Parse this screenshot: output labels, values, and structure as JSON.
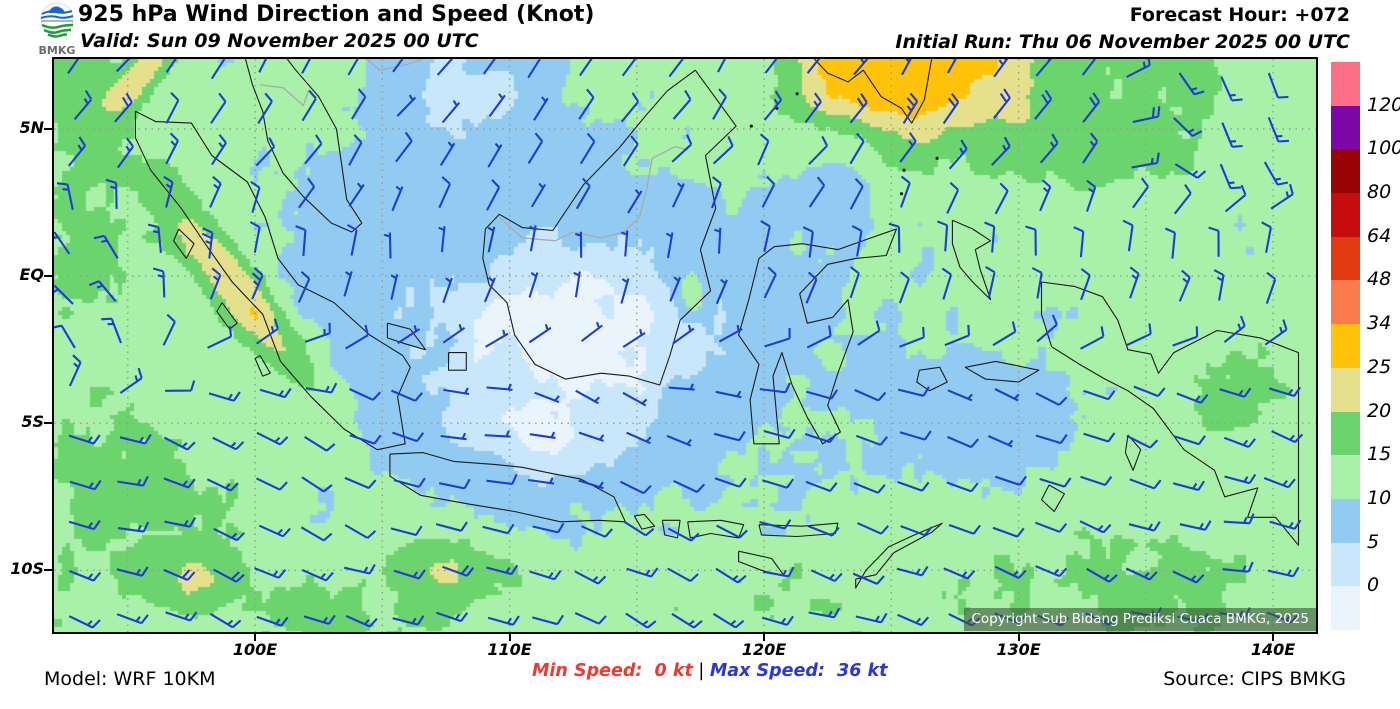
{
  "header": {
    "logo_text": "BMKG",
    "title": "925 hPa Wind Direction and Speed (Knot)",
    "valid": "Valid: Sun 09 November 2025 00 UTC",
    "forecast_hour_label": "Forecast Hour: ",
    "forecast_hour_value": "+072",
    "initial_run": "Initial Run: Thu 06 November 2025 00 UTC"
  },
  "map": {
    "copyright": "Copyright Sub Bidang Prediksi Cuaca BMKG, 2025",
    "barb_color": "#1E3CDB",
    "lat_ticks": [
      {
        "label": "5N",
        "lat": 5
      },
      {
        "label": "EQ",
        "lat": 0
      },
      {
        "label": "5S",
        "lat": -5
      },
      {
        "label": "10S",
        "lat": -10
      }
    ],
    "lon_ticks": [
      {
        "label": "100E",
        "lon": 100
      },
      {
        "label": "110E",
        "lon": 110
      },
      {
        "label": "120E",
        "lon": 120
      },
      {
        "label": "130E",
        "lon": 130
      },
      {
        "label": "140E",
        "lon": 140
      }
    ]
  },
  "colorbar": {
    "boundary_labels": [
      "120",
      "100",
      "80",
      "64",
      "48",
      "34",
      "25",
      "20",
      "15",
      "10",
      "5",
      "0"
    ],
    "segment_colors_top_to_bottom": [
      "#FC6E86",
      "#7C06A6",
      "#9B0404",
      "#C60D0D",
      "#E03A10",
      "#F97B4B",
      "#FFC40A",
      "#E4E08C",
      "#6CD46C",
      "#A9F0A9",
      "#92CBF1",
      "#C9E7FA",
      "#EAF4FD"
    ]
  },
  "footer": {
    "model": "Model: WRF 10KM",
    "min_speed_label": "Min Speed: ",
    "min_speed_value": " 0 kt",
    "separator": " | ",
    "max_speed_label": "Max Speed: ",
    "max_speed_value": " 36 kt",
    "source": "Source: CIPS BMKG"
  }
}
